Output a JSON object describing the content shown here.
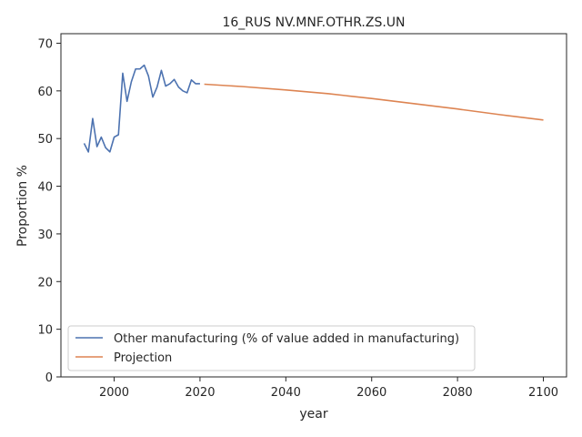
{
  "chart_data": {
    "type": "line",
    "title": "16_RUS NV.MNF.OTHR.ZS.UN",
    "xlabel": "year",
    "ylabel": "Proportion %",
    "xlim": [
      1987.6,
      2105.4
    ],
    "ylim": [
      0,
      72
    ],
    "xticks": [
      2000,
      2020,
      2040,
      2060,
      2080,
      2100
    ],
    "yticks": [
      0,
      10,
      20,
      30,
      40,
      50,
      60,
      70
    ],
    "grid": false,
    "legend_position": "lower-left",
    "series": [
      {
        "name": "Other manufacturing (% of value added in manufacturing)",
        "color": "#4c72b0",
        "x": [
          1993,
          1994,
          1995,
          1996,
          1997,
          1998,
          1999,
          2000,
          2001,
          2002,
          2003,
          2004,
          2005,
          2006,
          2007,
          2008,
          2009,
          2010,
          2011,
          2012,
          2013,
          2014,
          2015,
          2016,
          2017,
          2018,
          2019,
          2020
        ],
        "y": [
          49.0,
          47.2,
          54.2,
          48.3,
          50.3,
          48.1,
          47.2,
          50.3,
          50.8,
          63.7,
          57.8,
          61.9,
          64.6,
          64.6,
          65.4,
          63.1,
          58.7,
          60.8,
          64.3,
          61.0,
          61.5,
          62.4,
          60.8,
          60.0,
          59.6,
          62.3,
          61.5,
          61.5
        ]
      },
      {
        "name": "Projection",
        "color": "#dd8452",
        "x": [
          2021,
          2030,
          2040,
          2050,
          2060,
          2070,
          2080,
          2090,
          2100
        ],
        "y": [
          61.4,
          60.9,
          60.2,
          59.4,
          58.4,
          57.3,
          56.2,
          55.0,
          53.9
        ]
      }
    ]
  }
}
